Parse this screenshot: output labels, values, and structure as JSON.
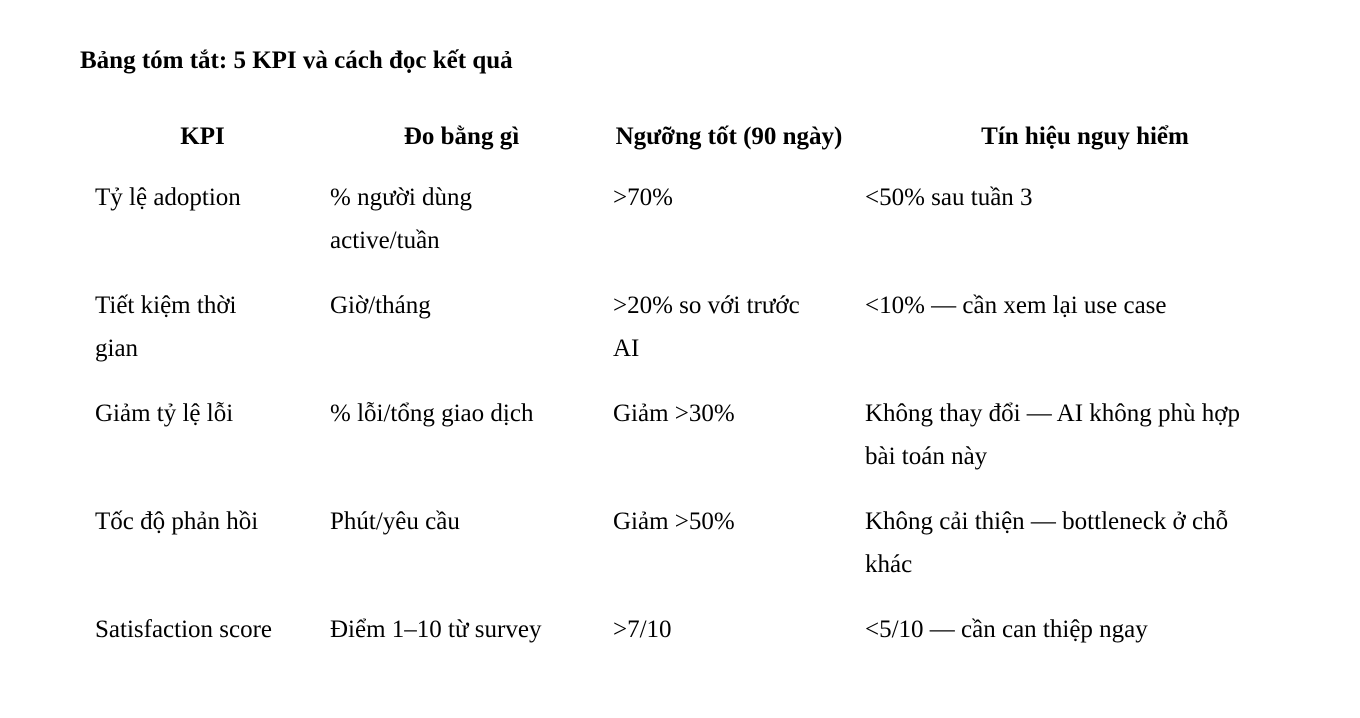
{
  "page": {
    "title": "Bảng tóm tắt: 5 KPI và cách đọc kết quả",
    "background": "#ffffff",
    "text_color": "#000000"
  },
  "table": {
    "headers": [
      "KPI",
      "Đo bằng gì",
      "Ngưỡng tốt (90 ngày)",
      "Tín hiệu nguy hiểm"
    ],
    "rows": [
      [
        "Tỷ lệ adoption",
        "% người dùng active/tuần",
        ">70%",
        "<50% sau tuần 3"
      ],
      [
        "Tiết kiệm thời gian",
        "Giờ/tháng",
        ">20% so với trước AI",
        "<10% — cần xem lại use case"
      ],
      [
        "Giảm tỷ lệ lỗi",
        "% lỗi/tổng giao dịch",
        "Giảm >30%",
        "Không thay đổi — AI không phù hợp bài toán này"
      ],
      [
        "Tốc độ phản hồi",
        "Phút/yêu cầu",
        "Giảm >50%",
        "Không cải thiện — bottleneck ở chỗ khác"
      ],
      [
        "Satisfaction score",
        "Điểm 1–10 từ survey",
        ">7/10",
        "<5/10 — cần can thiệp ngay"
      ]
    ]
  }
}
